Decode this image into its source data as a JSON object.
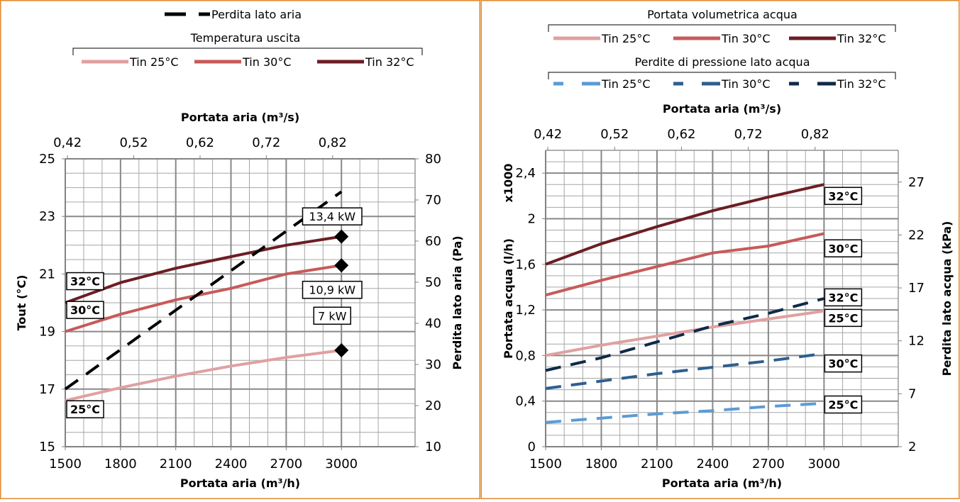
{
  "colors": {
    "border": "#E08A30",
    "grid": "#a6a6a6",
    "axis": "#7f7f7f",
    "tin25": "#E0A0A0",
    "tin30": "#C85A5A",
    "tin32": "#6B1E24",
    "airloss": "#000000",
    "p25": "#5B9BD5",
    "p30": "#2E5F8F",
    "p32": "#0F2A47"
  },
  "chart_data": [
    {
      "type": "line",
      "legend": {
        "top_entry": "Perdita lato aria",
        "group_title": "Temperatura uscita",
        "entries": [
          "Tin 25°C",
          "Tin 30°C",
          "Tin 32°C"
        ]
      },
      "top_axis": {
        "label": "Portata aria (m³/s)",
        "ticks": [
          "0,42",
          "0,52",
          "0,62",
          "0,72",
          "0,82"
        ],
        "values": [
          0.42,
          0.52,
          0.62,
          0.72,
          0.82
        ],
        "range": [
          0.42,
          0.8333
        ]
      },
      "x_axis": {
        "label": "Portata aria (m³/h)",
        "ticks": [
          "1500",
          "1800",
          "2100",
          "2400",
          "2700",
          "3000"
        ],
        "range": [
          1500,
          3400
        ]
      },
      "y_left": {
        "label": "Tout (°C)",
        "ticks": [
          "15",
          "17",
          "19",
          "21",
          "23",
          "25"
        ],
        "range": [
          15,
          25
        ]
      },
      "y_right": {
        "label": "Perdita lato aria (Pa)",
        "ticks": [
          "10",
          "20",
          "30",
          "40",
          "50",
          "60",
          "70",
          "80"
        ],
        "range": [
          10,
          80
        ]
      },
      "series": [
        {
          "name": "Tin 25°C",
          "axis": "left",
          "x": [
            1500,
            1800,
            2100,
            2400,
            2700,
            3000
          ],
          "y": [
            16.6,
            17.05,
            17.45,
            17.8,
            18.1,
            18.35
          ]
        },
        {
          "name": "Tin 30°C",
          "axis": "left",
          "x": [
            1500,
            1800,
            2100,
            2400,
            2700,
            3000
          ],
          "y": [
            19.0,
            19.6,
            20.1,
            20.5,
            21.0,
            21.3
          ]
        },
        {
          "name": "Tin 32°C",
          "axis": "left",
          "x": [
            1500,
            1800,
            2100,
            2400,
            2700,
            3000
          ],
          "y": [
            20.0,
            20.7,
            21.2,
            21.6,
            22.0,
            22.3
          ]
        },
        {
          "name": "Perdita lato aria",
          "axis": "right",
          "dashed": true,
          "x": [
            1500,
            3000
          ],
          "y": [
            24,
            72
          ]
        }
      ],
      "line_labels": [
        {
          "text": "32°C",
          "x": 1500,
          "y": 20.75
        },
        {
          "text": "30°C",
          "x": 1500,
          "y": 19.75
        },
        {
          "text": "25°C",
          "x": 1500,
          "y": 16.3
        }
      ],
      "markers": [
        {
          "x": 3000,
          "y": 22.3
        },
        {
          "x": 3000,
          "y": 21.3
        },
        {
          "x": 3000,
          "y": 18.35
        }
      ],
      "annotations": [
        {
          "text": "13,4 kW",
          "x": 2950,
          "y": 23.0
        },
        {
          "text": "10,9 kW",
          "x": 2950,
          "y": 20.45
        },
        {
          "text": "7 kW",
          "x": 2950,
          "y": 19.55
        }
      ]
    },
    {
      "type": "line",
      "legend": {
        "group1_title": "Portata volumetrica acqua",
        "group1_entries": [
          "Tin 25°C",
          "Tin 30°C",
          "Tin 32°C"
        ],
        "group2_title": "Perdite di pressione lato acqua",
        "group2_entries": [
          "Tin 25°C",
          "Tin 30°C",
          "Tin 32°C"
        ]
      },
      "top_axis": {
        "label": "Portata aria (m³/s)",
        "ticks": [
          "0,42",
          "0,52",
          "0,62",
          "0,72",
          "0,82"
        ],
        "values": [
          0.42,
          0.52,
          0.62,
          0.72,
          0.82
        ],
        "range": [
          0.42,
          0.8333
        ]
      },
      "x_axis": {
        "label": "Portata aria (m³/h)",
        "ticks": [
          "1500",
          "1800",
          "2100",
          "2400",
          "2700",
          "3000"
        ],
        "range": [
          1500,
          3400
        ]
      },
      "y_left": {
        "label": "Portata acqua (l/h)",
        "multiplier": "x1000",
        "ticks": [
          "0",
          "0,4",
          "0,8",
          "1,2",
          "1,6",
          "2",
          "2,4"
        ],
        "range": [
          0,
          2.6
        ]
      },
      "y_right": {
        "label": "Perdita lato acqua (kPa)",
        "ticks": [
          "2",
          "7",
          "12",
          "17",
          "22",
          "27"
        ],
        "range": [
          2,
          30
        ]
      },
      "series": [
        {
          "name": "Tin 25°C",
          "group": "Portata volumetrica acqua",
          "axis": "left",
          "x": [
            1500,
            1800,
            2100,
            2400,
            2700,
            3000
          ],
          "y": [
            0.8,
            0.89,
            0.97,
            1.05,
            1.12,
            1.19
          ]
        },
        {
          "name": "Tin 30°C",
          "group": "Portata volumetrica acqua",
          "axis": "left",
          "x": [
            1500,
            1800,
            2100,
            2400,
            2700,
            3000
          ],
          "y": [
            1.33,
            1.46,
            1.58,
            1.7,
            1.76,
            1.87
          ]
        },
        {
          "name": "Tin 32°C",
          "group": "Portata volumetrica acqua",
          "axis": "left",
          "x": [
            1500,
            1800,
            2100,
            2400,
            2700,
            3000
          ],
          "y": [
            1.6,
            1.78,
            1.93,
            2.07,
            2.19,
            2.3
          ]
        },
        {
          "name": "Tin 25°C",
          "group": "Perdite di pressione lato acqua",
          "axis": "right",
          "dashed": true,
          "x": [
            1500,
            1800,
            2100,
            2400,
            2700,
            3000
          ],
          "y": [
            4.3,
            4.7,
            5.1,
            5.4,
            5.8,
            6.1
          ]
        },
        {
          "name": "Tin 30°C",
          "group": "Perdite di pressione lato acqua",
          "axis": "right",
          "dashed": true,
          "x": [
            1500,
            1800,
            2100,
            2400,
            2700,
            3000
          ],
          "y": [
            7.5,
            8.2,
            8.9,
            9.5,
            10.1,
            10.8
          ]
        },
        {
          "name": "Tin 32°C",
          "group": "Perdite di pressione lato acqua",
          "axis": "right",
          "dashed": true,
          "x": [
            1500,
            1800,
            2100,
            2400,
            2700,
            3000
          ],
          "y": [
            9.2,
            10.4,
            11.9,
            13.4,
            14.6,
            16.0
          ]
        }
      ],
      "line_labels": [
        {
          "text": "32°C",
          "x": 3000,
          "y": 2.2
        },
        {
          "text": "30°C",
          "x": 3000,
          "y": 1.74
        },
        {
          "text": "32°C",
          "x": 3000,
          "y": 1.31
        },
        {
          "text": "25°C",
          "x": 3000,
          "y": 1.13
        },
        {
          "text": "30°C",
          "x": 3000,
          "y": 0.73
        },
        {
          "text": "25°C",
          "x": 3000,
          "y": 0.37
        }
      ]
    }
  ]
}
